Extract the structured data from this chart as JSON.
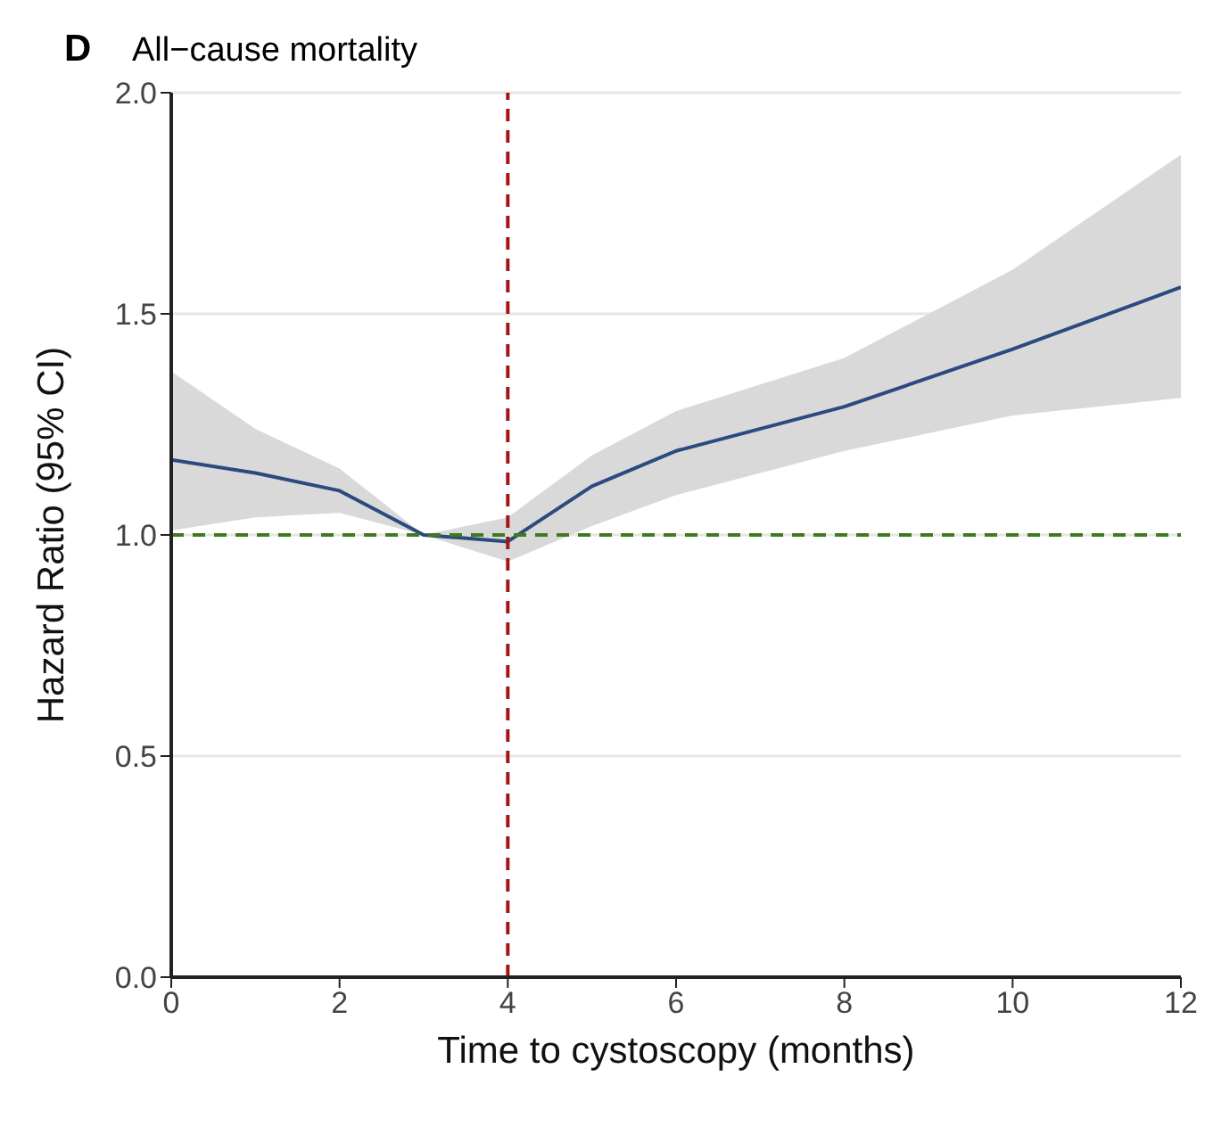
{
  "chart_data": {
    "type": "line",
    "title": "All−cause mortality",
    "annotations": [
      "D"
    ],
    "xlabel": "Time to cystoscopy (months)",
    "ylabel": "Hazard Ratio (95% CI)",
    "x": [
      0,
      1,
      2,
      3,
      4,
      5,
      6,
      8,
      10,
      12
    ],
    "series": [
      {
        "color": "#2b4a7f",
        "values": [
          1.17,
          1.14,
          1.1,
          1.0,
          0.985,
          1.11,
          1.19,
          1.29,
          1.42,
          1.56
        ],
        "lower": [
          1.01,
          1.04,
          1.05,
          1.0,
          0.94,
          1.02,
          1.09,
          1.19,
          1.27,
          1.31
        ],
        "upper": [
          1.37,
          1.24,
          1.15,
          1.0,
          1.04,
          1.18,
          1.28,
          1.4,
          1.6,
          1.86
        ]
      }
    ],
    "xlim": [
      0,
      12
    ],
    "xticks": [
      0,
      2,
      4,
      6,
      8,
      10,
      12
    ],
    "ylim": [
      0,
      2
    ],
    "yticks": [
      {
        "value": 0,
        "label": "0.0"
      },
      {
        "value": 0.5,
        "label": "0.5"
      },
      {
        "value": 1,
        "label": "1.0"
      },
      {
        "value": 1.5,
        "label": "1.5"
      },
      {
        "value": 2,
        "label": "2.0"
      }
    ],
    "grid": "y",
    "marker": "none",
    "line_style": "solid",
    "ref_lines": [
      {
        "axis": "y",
        "value": 1,
        "color": "#3f7a1f",
        "line_style": "dashed"
      },
      {
        "axis": "x",
        "value": 4,
        "color": "#a31515",
        "line_style": "dashed"
      }
    ]
  }
}
